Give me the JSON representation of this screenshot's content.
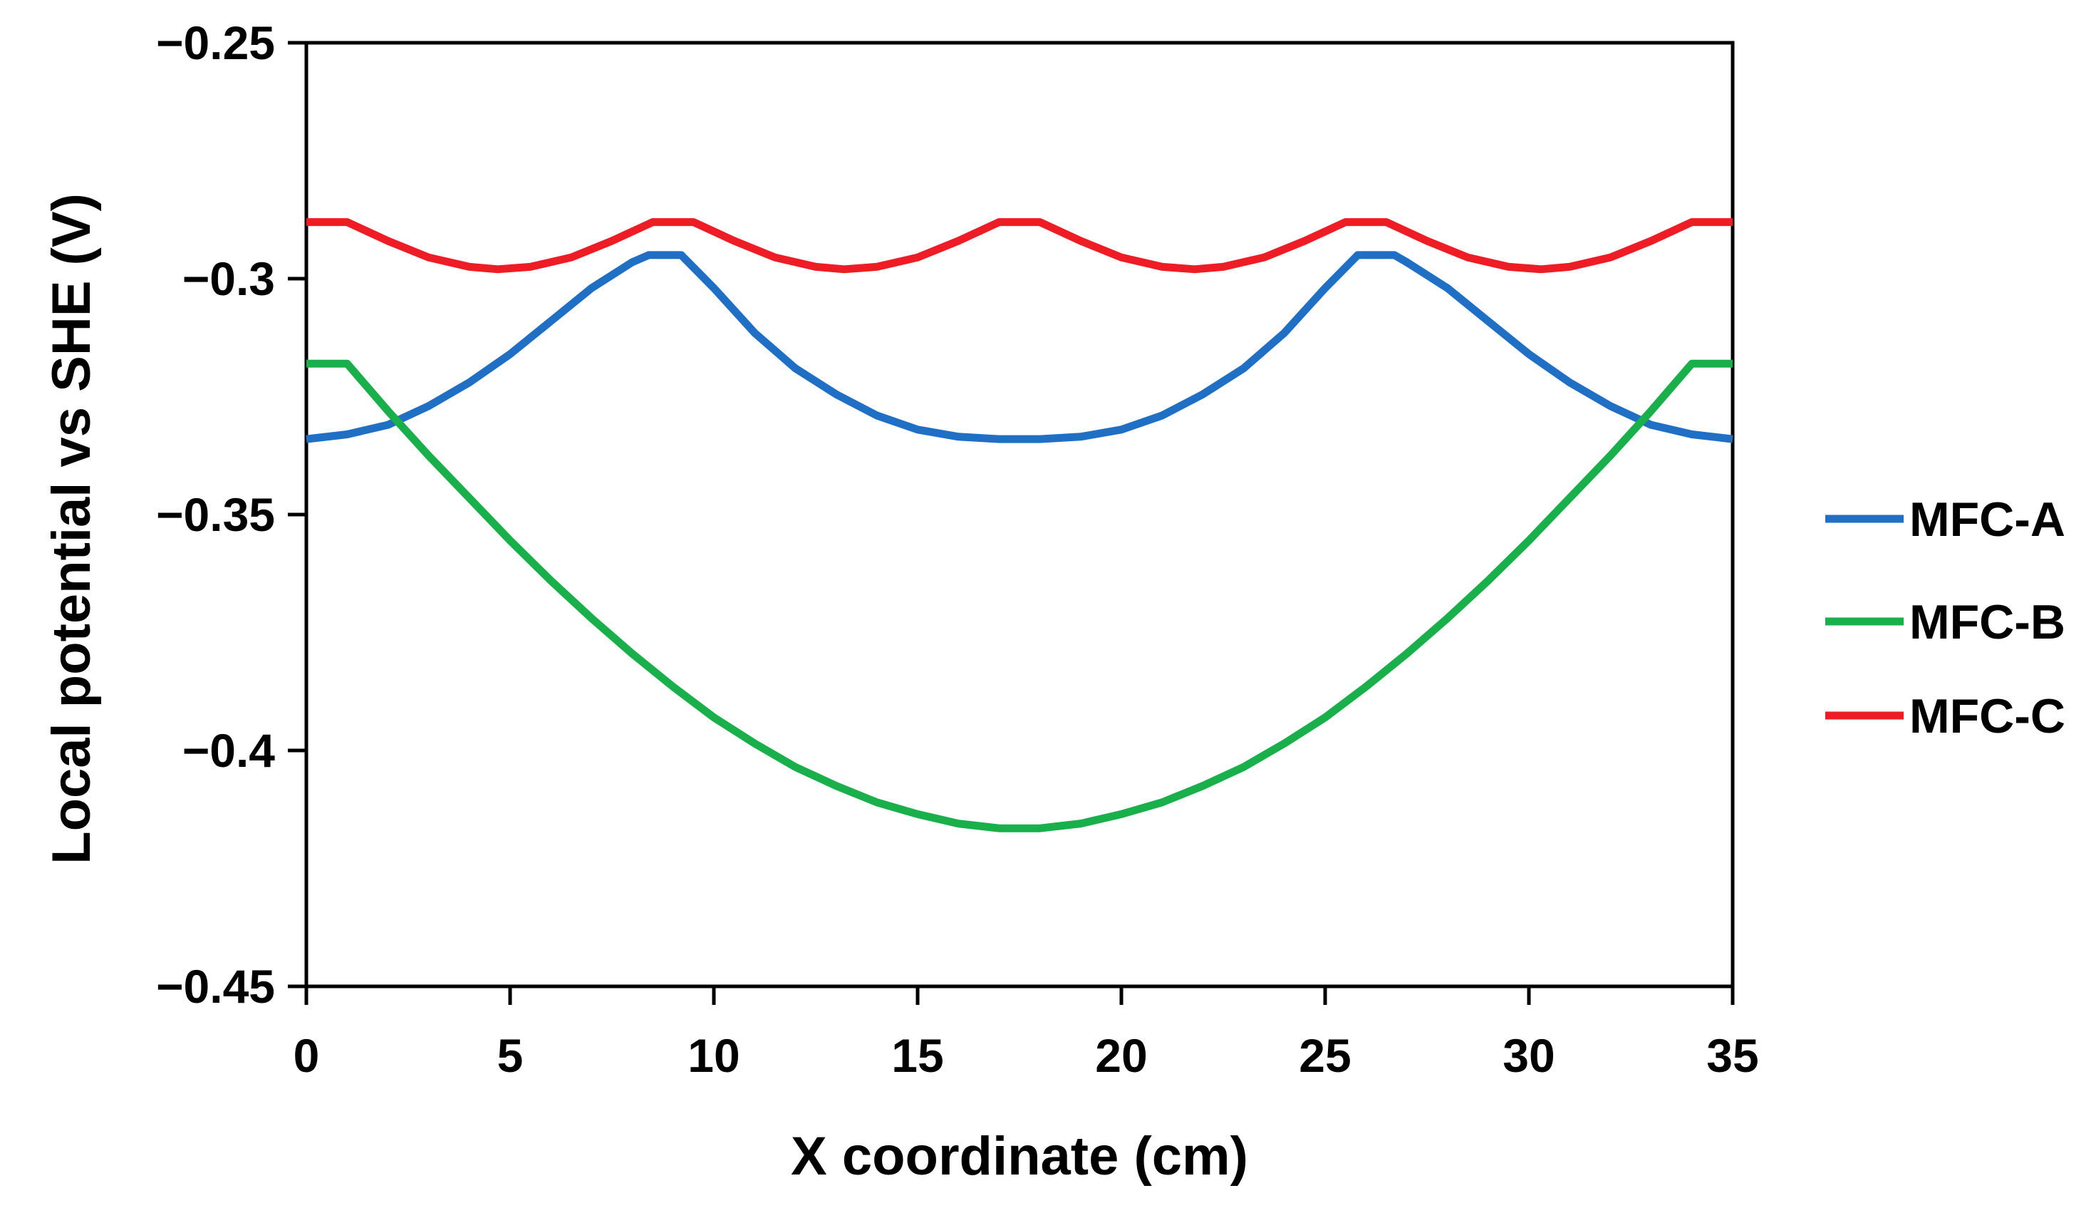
{
  "chart_data": {
    "type": "line",
    "title": "",
    "xlabel": "X coordinate (cm)",
    "ylabel": "Local potential vs SHE (V)",
    "xlim": [
      0,
      35
    ],
    "ylim": [
      -0.45,
      -0.25
    ],
    "xticks": [
      0,
      5,
      10,
      15,
      20,
      25,
      30,
      35
    ],
    "xtick_labels": [
      "0",
      "5",
      "10",
      "15",
      "20",
      "25",
      "30",
      "35"
    ],
    "yticks": [
      -0.25,
      -0.3,
      -0.35,
      -0.4,
      -0.45
    ],
    "ytick_labels": [
      "−0.25",
      "−0.3",
      "−0.35",
      "−0.4",
      "−0.45"
    ],
    "grid": false,
    "legend_position": "right",
    "series": [
      {
        "name": "MFC-A",
        "color": "#1f6fc4",
        "x": [
          0,
          1,
          2,
          3,
          4,
          5,
          6,
          7,
          8,
          8.4,
          9.2,
          10,
          11,
          12,
          13,
          14,
          15,
          16,
          17,
          17.5,
          18,
          19,
          20,
          21,
          22,
          23,
          24,
          25,
          25.8,
          26.7,
          27,
          28,
          29,
          30,
          31,
          32,
          33,
          34,
          35
        ],
        "values": [
          -0.334,
          -0.333,
          -0.331,
          -0.327,
          -0.322,
          -0.316,
          -0.309,
          -0.302,
          -0.2965,
          -0.295,
          -0.295,
          -0.302,
          -0.3115,
          -0.319,
          -0.3245,
          -0.329,
          -0.332,
          -0.3335,
          -0.334,
          -0.334,
          -0.334,
          -0.3335,
          -0.332,
          -0.329,
          -0.3245,
          -0.319,
          -0.3115,
          -0.302,
          -0.295,
          -0.295,
          -0.2965,
          -0.302,
          -0.309,
          -0.316,
          -0.322,
          -0.327,
          -0.331,
          -0.333,
          -0.334
        ]
      },
      {
        "name": "MFC-B",
        "color": "#19b04b",
        "x": [
          0,
          1,
          2,
          3,
          4,
          5,
          6,
          7,
          8,
          9,
          10,
          11,
          12,
          13,
          14,
          15,
          16,
          17,
          17.5,
          18,
          19,
          20,
          21,
          22,
          23,
          24,
          25,
          26,
          27,
          28,
          29,
          30,
          31,
          32,
          33,
          34,
          35
        ],
        "values": [
          -0.318,
          -0.318,
          -0.328,
          -0.3375,
          -0.3465,
          -0.3555,
          -0.364,
          -0.372,
          -0.3795,
          -0.3865,
          -0.393,
          -0.3985,
          -0.4035,
          -0.4075,
          -0.411,
          -0.4135,
          -0.4155,
          -0.4165,
          -0.4165,
          -0.4165,
          -0.4155,
          -0.4135,
          -0.411,
          -0.4075,
          -0.4035,
          -0.3985,
          -0.393,
          -0.3865,
          -0.3795,
          -0.372,
          -0.364,
          -0.3555,
          -0.3465,
          -0.3375,
          -0.328,
          -0.318,
          -0.318
        ]
      },
      {
        "name": "MFC-C",
        "color": "#ee1c24",
        "x": [
          0,
          1,
          2,
          3,
          4,
          4.7,
          5.5,
          6.5,
          7.5,
          8.5,
          9.5,
          10.5,
          11.5,
          12.5,
          13.2,
          14,
          15,
          16,
          17,
          18,
          19,
          20,
          21,
          21.8,
          22.5,
          23.5,
          24.5,
          25.5,
          26.5,
          27.5,
          28.5,
          29.5,
          30.3,
          31,
          32,
          33,
          34,
          35
        ],
        "values": [
          -0.288,
          -0.288,
          -0.292,
          -0.2955,
          -0.2975,
          -0.298,
          -0.2975,
          -0.2955,
          -0.292,
          -0.288,
          -0.288,
          -0.292,
          -0.2955,
          -0.2975,
          -0.298,
          -0.2975,
          -0.2955,
          -0.292,
          -0.288,
          -0.288,
          -0.292,
          -0.2955,
          -0.2975,
          -0.298,
          -0.2975,
          -0.2955,
          -0.292,
          -0.288,
          -0.288,
          -0.292,
          -0.2955,
          -0.2975,
          -0.298,
          -0.2975,
          -0.2955,
          -0.292,
          -0.288,
          -0.288
        ]
      }
    ]
  }
}
